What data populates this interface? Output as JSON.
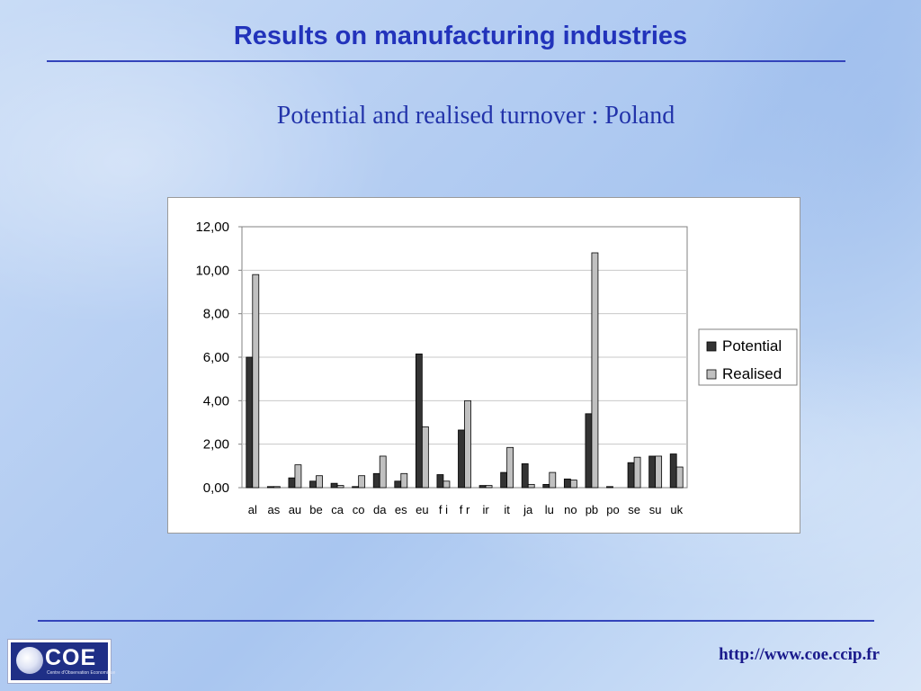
{
  "slide": {
    "title": "Results on manufacturing industries",
    "subtitle": "Potential and realised turnover : Poland"
  },
  "footer": {
    "logo_text": "COE",
    "logo_subtext": "Centre d'Observation Economique",
    "url": "http://www.coe.ccip.fr"
  },
  "colors": {
    "title": "#2233bb",
    "potential": "#333333",
    "realised": "#c0c0c0"
  },
  "chart_data": {
    "type": "bar",
    "categories": [
      "al",
      "as",
      "au",
      "be",
      "ca",
      "co",
      "da",
      "es",
      "eu",
      "fi",
      "fr",
      "ir",
      "it",
      "ja",
      "lu",
      "no",
      "pb",
      "po",
      "se",
      "su",
      "uk"
    ],
    "category_labels": [
      "al",
      "as",
      "au",
      "be",
      "ca",
      "co",
      "da",
      "es",
      "eu",
      "f i",
      "f r",
      "ir",
      "it",
      "ja",
      "lu",
      "no",
      "pb",
      "po",
      "se",
      "su",
      "uk"
    ],
    "series": [
      {
        "name": "Potential",
        "values": [
          6.0,
          0.05,
          0.45,
          0.3,
          0.2,
          0.05,
          0.65,
          0.3,
          6.15,
          0.6,
          2.65,
          0.1,
          0.7,
          1.1,
          0.15,
          0.4,
          3.4,
          0.05,
          1.15,
          1.45,
          1.55
        ]
      },
      {
        "name": "Realised",
        "values": [
          9.8,
          0.05,
          1.05,
          0.55,
          0.1,
          0.55,
          1.45,
          0.65,
          2.8,
          0.3,
          4.0,
          0.1,
          1.85,
          0.15,
          0.7,
          0.35,
          10.8,
          0.0,
          1.4,
          1.45,
          0.95
        ]
      }
    ],
    "yticks": [
      "0,00",
      "2,00",
      "4,00",
      "6,00",
      "8,00",
      "10,00",
      "12,00"
    ],
    "ylim": [
      0,
      12
    ],
    "legend_position": "right",
    "grid": true
  }
}
